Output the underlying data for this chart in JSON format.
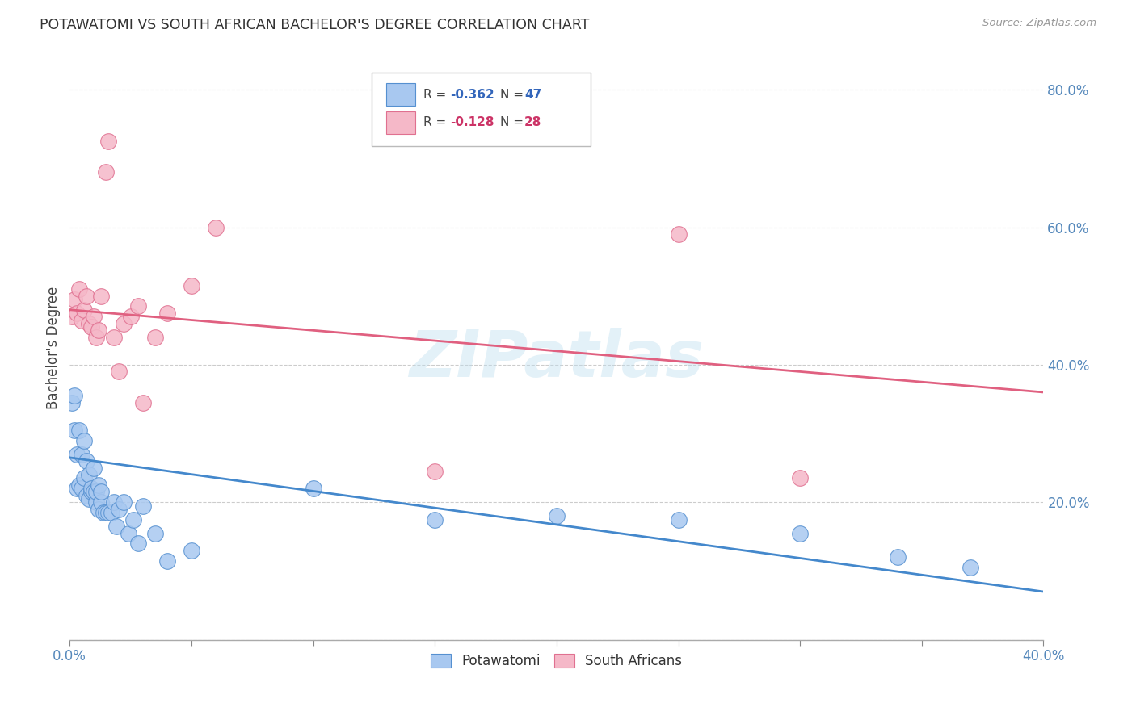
{
  "title": "POTAWATOMI VS SOUTH AFRICAN BACHELOR'S DEGREE CORRELATION CHART",
  "source": "Source: ZipAtlas.com",
  "ylabel": "Bachelor's Degree",
  "xlim": [
    0.0,
    0.4
  ],
  "ylim": [
    0.0,
    0.85
  ],
  "legend_blue_r": "-0.362",
  "legend_blue_n": "47",
  "legend_pink_r": "-0.128",
  "legend_pink_n": "28",
  "blue_fill": "#A8C8F0",
  "blue_edge": "#5590D0",
  "pink_fill": "#F5B8C8",
  "pink_edge": "#E07090",
  "blue_line": "#4488CC",
  "pink_line": "#E06080",
  "watermark": "ZIPatlas",
  "potawatomi_x": [
    0.001,
    0.002,
    0.002,
    0.003,
    0.003,
    0.004,
    0.004,
    0.005,
    0.005,
    0.006,
    0.006,
    0.007,
    0.007,
    0.008,
    0.008,
    0.009,
    0.009,
    0.01,
    0.01,
    0.011,
    0.011,
    0.012,
    0.012,
    0.013,
    0.013,
    0.014,
    0.015,
    0.016,
    0.017,
    0.018,
    0.019,
    0.02,
    0.022,
    0.024,
    0.026,
    0.028,
    0.03,
    0.035,
    0.04,
    0.05,
    0.1,
    0.15,
    0.2,
    0.25,
    0.3,
    0.34,
    0.37
  ],
  "potawatomi_y": [
    0.345,
    0.355,
    0.305,
    0.22,
    0.27,
    0.305,
    0.225,
    0.22,
    0.27,
    0.29,
    0.235,
    0.21,
    0.26,
    0.205,
    0.24,
    0.215,
    0.22,
    0.215,
    0.25,
    0.2,
    0.215,
    0.19,
    0.225,
    0.2,
    0.215,
    0.185,
    0.185,
    0.185,
    0.185,
    0.2,
    0.165,
    0.19,
    0.2,
    0.155,
    0.175,
    0.14,
    0.195,
    0.155,
    0.115,
    0.13,
    0.22,
    0.175,
    0.18,
    0.175,
    0.155,
    0.12,
    0.105
  ],
  "south_african_x": [
    0.001,
    0.002,
    0.003,
    0.004,
    0.005,
    0.006,
    0.007,
    0.008,
    0.009,
    0.01,
    0.011,
    0.012,
    0.013,
    0.015,
    0.016,
    0.018,
    0.02,
    0.022,
    0.025,
    0.028,
    0.03,
    0.035,
    0.04,
    0.05,
    0.06,
    0.15,
    0.25,
    0.3
  ],
  "south_african_y": [
    0.47,
    0.495,
    0.475,
    0.51,
    0.465,
    0.48,
    0.5,
    0.46,
    0.455,
    0.47,
    0.44,
    0.45,
    0.5,
    0.68,
    0.725,
    0.44,
    0.39,
    0.46,
    0.47,
    0.485,
    0.345,
    0.44,
    0.475,
    0.515,
    0.6,
    0.245,
    0.59,
    0.235
  ],
  "blue_trend_x": [
    0.0,
    0.4
  ],
  "blue_trend_y": [
    0.265,
    0.07
  ],
  "pink_trend_x": [
    0.0,
    0.4
  ],
  "pink_trend_y": [
    0.48,
    0.36
  ]
}
